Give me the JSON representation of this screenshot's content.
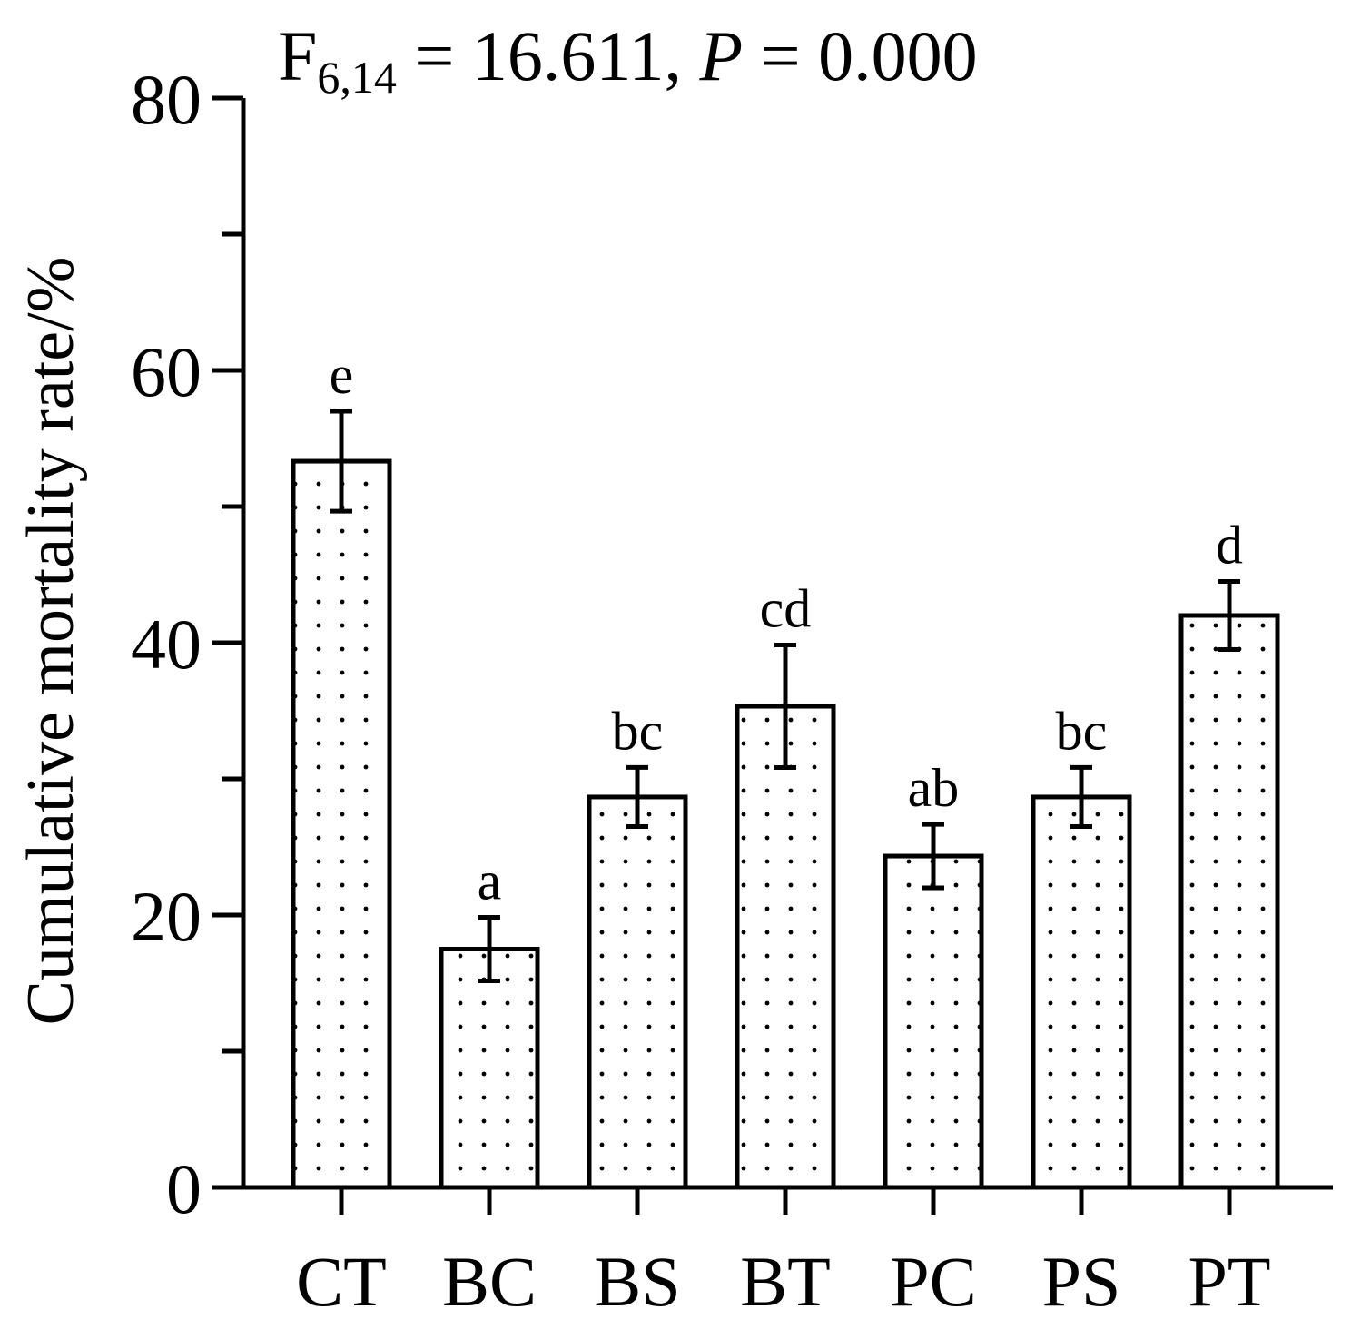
{
  "chart_data": {
    "type": "bar",
    "title": {
      "f_main": "F",
      "f_sub": "6,14",
      "f_value": " = 16.611, ",
      "p_label": "P",
      "p_value": " = 0.000"
    },
    "xlabel": "",
    "ylabel": "Cumulative mortality rate/%",
    "ylim": [
      0,
      80
    ],
    "yticks": [
      0,
      20,
      40,
      60,
      80
    ],
    "yminor_step": 6.667,
    "grid": false,
    "categories": [
      "CT",
      "BC",
      "BS",
      "BT",
      "PC",
      "PS",
      "PT"
    ],
    "series": [
      {
        "values": [
          53.33,
          17.5,
          28.67,
          35.33,
          24.33,
          28.67,
          42
        ],
        "errors": [
          3.67,
          2.33,
          2.17,
          4.5,
          2.33,
          2.17,
          2.5
        ],
        "significance": [
          "e",
          "a",
          "bc",
          "cd",
          "ab",
          "bc",
          "d"
        ],
        "fill": "#ffffff",
        "pattern": "dots"
      }
    ],
    "colors": {
      "stroke": "#000000",
      "background": "#ffffff"
    }
  }
}
